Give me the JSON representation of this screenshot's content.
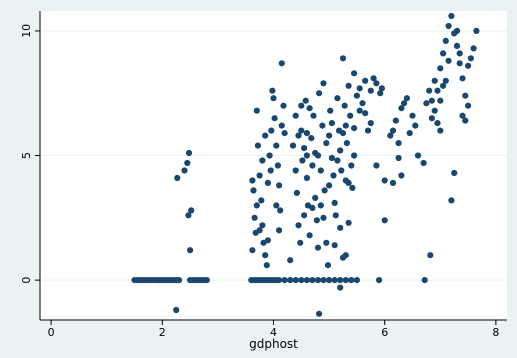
{
  "chart_data": {
    "type": "scatter",
    "title": "",
    "xlabel": "gdphost",
    "ylabel": "",
    "xlim": [
      -0.2,
      8.2
    ],
    "ylim": [
      -1.6,
      10.8
    ],
    "x_ticks": [
      0,
      2,
      4,
      6,
      8
    ],
    "y_ticks": [
      0,
      5,
      10
    ],
    "grid": "horizontal",
    "legend": "none",
    "colors": {
      "marker": "#1a476f",
      "plot_background": "#ffffff",
      "outer_background": "#eaf2f3",
      "gridline": "#eaf2f3"
    },
    "series": [
      {
        "points": [
          [
            1.5,
            0
          ],
          [
            1.55,
            0
          ],
          [
            1.6,
            0
          ],
          [
            1.65,
            0
          ],
          [
            1.7,
            0
          ],
          [
            1.75,
            0
          ],
          [
            1.8,
            0
          ],
          [
            1.85,
            0
          ],
          [
            1.9,
            0
          ],
          [
            1.95,
            0
          ],
          [
            2.0,
            0
          ],
          [
            2.05,
            0
          ],
          [
            2.1,
            0
          ],
          [
            2.15,
            0
          ],
          [
            2.2,
            0
          ],
          [
            2.25,
            0
          ],
          [
            2.3,
            0
          ],
          [
            2.5,
            0
          ],
          [
            2.55,
            0
          ],
          [
            2.6,
            0
          ],
          [
            2.65,
            0
          ],
          [
            2.7,
            0
          ],
          [
            2.75,
            0
          ],
          [
            2.8,
            0
          ],
          [
            2.25,
            -1.2
          ],
          [
            2.27,
            4.1
          ],
          [
            2.4,
            4.4
          ],
          [
            2.45,
            4.7
          ],
          [
            2.48,
            5.1
          ],
          [
            2.47,
            2.6
          ],
          [
            2.52,
            2.8
          ],
          [
            2.5,
            1.2
          ],
          [
            3.6,
            0
          ],
          [
            3.65,
            0
          ],
          [
            3.7,
            0
          ],
          [
            3.75,
            0
          ],
          [
            3.8,
            0
          ],
          [
            3.85,
            0
          ],
          [
            3.9,
            0
          ],
          [
            3.95,
            0
          ],
          [
            4.0,
            0
          ],
          [
            4.05,
            0
          ],
          [
            4.1,
            0
          ],
          [
            4.2,
            0
          ],
          [
            4.3,
            0
          ],
          [
            4.4,
            0
          ],
          [
            4.5,
            0
          ],
          [
            4.6,
            0
          ],
          [
            4.7,
            0
          ],
          [
            4.8,
            0
          ],
          [
            4.9,
            0
          ],
          [
            5.0,
            0
          ],
          [
            5.1,
            0
          ],
          [
            5.2,
            0
          ],
          [
            5.3,
            0
          ],
          [
            5.4,
            0
          ],
          [
            5.5,
            0
          ],
          [
            4.82,
            -1.35
          ],
          [
            5.2,
            -0.3
          ],
          [
            3.62,
            4.0
          ],
          [
            3.64,
            3.6
          ],
          [
            3.66,
            2.5
          ],
          [
            3.68,
            1.9
          ],
          [
            3.7,
            6.8
          ],
          [
            3.72,
            5.4
          ],
          [
            3.75,
            4.2
          ],
          [
            3.78,
            3.2
          ],
          [
            3.8,
            2.2
          ],
          [
            3.82,
            1.5
          ],
          [
            3.85,
            1.0
          ],
          [
            3.88,
            0.6
          ],
          [
            3.9,
            3.9
          ],
          [
            3.93,
            5.0
          ],
          [
            3.96,
            6.0
          ],
          [
            3.98,
            7.6
          ],
          [
            4.0,
            7.3
          ],
          [
            4.02,
            6.5
          ],
          [
            4.05,
            5.4
          ],
          [
            4.08,
            4.6
          ],
          [
            4.1,
            3.8
          ],
          [
            4.12,
            2.8
          ],
          [
            4.15,
            8.7
          ],
          [
            4.18,
            7.0
          ],
          [
            4.2,
            5.9
          ],
          [
            3.7,
            3.0
          ],
          [
            3.75,
            2.0
          ],
          [
            3.8,
            4.8
          ],
          [
            3.85,
            5.8
          ],
          [
            3.95,
            4.4
          ],
          [
            4.05,
            3.0
          ],
          [
            4.1,
            2.0
          ],
          [
            4.15,
            6.2
          ],
          [
            3.9,
            1.6
          ],
          [
            3.62,
            1.2
          ],
          [
            4.3,
            0.8
          ],
          [
            4.35,
            5.4
          ],
          [
            4.4,
            4.4
          ],
          [
            4.42,
            3.5
          ],
          [
            4.45,
            2.2
          ],
          [
            4.48,
            1.5
          ],
          [
            4.5,
            6.0
          ],
          [
            4.52,
            4.8
          ],
          [
            4.55,
            5.3
          ],
          [
            4.58,
            7.2
          ],
          [
            4.6,
            4.1
          ],
          [
            4.62,
            3.0
          ],
          [
            4.65,
            1.8
          ],
          [
            4.68,
            5.7
          ],
          [
            4.7,
            4.6
          ],
          [
            4.72,
            6.6
          ],
          [
            4.75,
            3.3
          ],
          [
            4.78,
            2.4
          ],
          [
            4.8,
            5.0
          ],
          [
            4.82,
            7.5
          ],
          [
            4.85,
            4.4
          ],
          [
            4.88,
            6.2
          ],
          [
            4.9,
            7.9
          ],
          [
            4.92,
            3.6
          ],
          [
            4.95,
            1.5
          ],
          [
            4.98,
            0.6
          ],
          [
            5.0,
            5.8
          ],
          [
            5.02,
            6.8
          ],
          [
            5.05,
            4.9
          ],
          [
            5.08,
            4.2
          ],
          [
            5.1,
            3.1
          ],
          [
            5.12,
            2.6
          ],
          [
            5.15,
            7.3
          ],
          [
            5.18,
            6.0
          ],
          [
            5.2,
            5.2
          ],
          [
            5.22,
            4.4
          ],
          [
            5.25,
            8.9
          ],
          [
            5.28,
            7.0
          ],
          [
            5.3,
            6.2
          ],
          [
            5.32,
            5.5
          ],
          [
            5.35,
            7.8
          ],
          [
            5.38,
            6.6
          ],
          [
            5.4,
            4.6
          ],
          [
            5.42,
            3.7
          ],
          [
            5.45,
            8.3
          ],
          [
            5.5,
            7.4
          ],
          [
            5.55,
            6.8
          ],
          [
            5.6,
            7.1
          ],
          [
            5.65,
            8.0
          ],
          [
            5.7,
            6.0
          ],
          [
            5.75,
            7.6
          ],
          [
            5.8,
            8.1
          ],
          [
            5.85,
            7.9
          ],
          [
            5.9,
            0
          ],
          [
            5.92,
            7.5
          ],
          [
            5.95,
            7.7
          ],
          [
            6.0,
            2.4
          ],
          [
            6.0,
            4.0
          ],
          [
            4.45,
            5.8
          ],
          [
            4.55,
            2.6
          ],
          [
            4.65,
            6.9
          ],
          [
            4.75,
            5.1
          ],
          [
            4.85,
            3.0
          ],
          [
            4.95,
            5.5
          ],
          [
            5.05,
            6.3
          ],
          [
            5.15,
            4.8
          ],
          [
            5.25,
            5.9
          ],
          [
            5.35,
            3.9
          ],
          [
            5.45,
            6.1
          ],
          [
            5.55,
            7.7
          ],
          [
            5.65,
            6.7
          ],
          [
            5.75,
            6.3
          ],
          [
            5.85,
            4.6
          ],
          [
            4.6,
            5.9
          ],
          [
            4.7,
            2.9
          ],
          [
            4.8,
            1.3
          ],
          [
            4.9,
            2.5
          ],
          [
            5.0,
            3.8
          ],
          [
            5.1,
            1.4
          ],
          [
            5.2,
            2.1
          ],
          [
            5.3,
            4.0
          ],
          [
            4.4,
            6.6
          ],
          [
            4.5,
            7.0
          ],
          [
            4.6,
            5.0
          ],
          [
            5.25,
            0.9
          ],
          [
            5.3,
            1.0
          ],
          [
            5.35,
            2.3
          ],
          [
            5.45,
            5.0
          ],
          [
            6.1,
            5.8
          ],
          [
            6.15,
            6.0
          ],
          [
            6.2,
            6.4
          ],
          [
            6.25,
            5.5
          ],
          [
            6.3,
            6.9
          ],
          [
            6.35,
            7.1
          ],
          [
            6.4,
            7.3
          ],
          [
            6.45,
            5.9
          ],
          [
            6.5,
            6.6
          ],
          [
            6.55,
            6.2
          ],
          [
            6.6,
            5.0
          ],
          [
            6.7,
            4.7
          ],
          [
            6.75,
            7.1
          ],
          [
            6.8,
            7.6
          ],
          [
            6.85,
            6.5
          ],
          [
            6.9,
            8.0
          ],
          [
            6.95,
            7.6
          ],
          [
            7.0,
            8.5
          ],
          [
            7.05,
            9.1
          ],
          [
            7.1,
            9.6
          ],
          [
            7.15,
            10.2
          ],
          [
            7.2,
            10.6
          ],
          [
            7.25,
            9.9
          ],
          [
            7.3,
            9.4
          ],
          [
            7.35,
            8.7
          ],
          [
            7.4,
            8.1
          ],
          [
            7.45,
            7.4
          ],
          [
            7.5,
            7.0
          ],
          [
            7.55,
            8.9
          ],
          [
            7.6,
            9.3
          ],
          [
            7.65,
            10.0
          ],
          [
            6.72,
            0
          ],
          [
            6.82,
            1.0
          ],
          [
            6.3,
            4.2
          ],
          [
            6.15,
            3.9
          ],
          [
            6.25,
            4.9
          ],
          [
            7.2,
            3.2
          ],
          [
            7.25,
            4.3
          ],
          [
            6.9,
            6.8
          ],
          [
            7.0,
            7.2
          ],
          [
            7.1,
            8.0
          ],
          [
            7.15,
            8.8
          ],
          [
            7.3,
            10.0
          ],
          [
            7.35,
            9.1
          ],
          [
            7.4,
            6.6
          ],
          [
            7.45,
            6.4
          ],
          [
            7.5,
            8.6
          ],
          [
            7.0,
            6.0
          ],
          [
            7.05,
            7.8
          ],
          [
            6.85,
            7.2
          ],
          [
            6.95,
            6.3
          ]
        ]
      }
    ]
  }
}
